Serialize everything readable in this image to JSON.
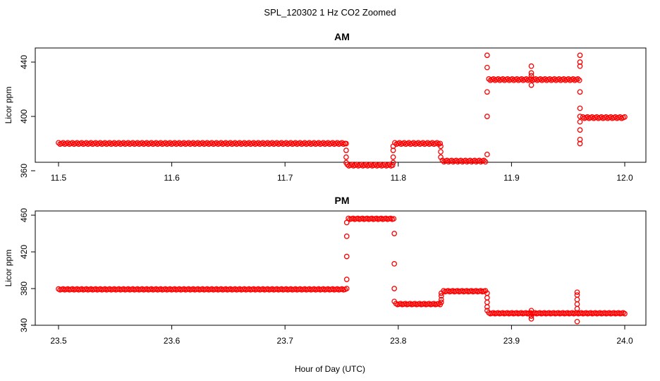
{
  "figure": {
    "title": "SPL_120302  1 Hz CO2 Zoomed",
    "xlabel": "Hour of Day (UTC)",
    "point_color": "#ff0000"
  },
  "chart_data": [
    {
      "type": "scatter",
      "title": "AM",
      "xlabel": "",
      "ylabel": "Licor ppm",
      "xlim": [
        11.5,
        12.0
      ],
      "ylim": [
        352,
        470
      ],
      "xticks": [
        "11.5",
        "11.6",
        "11.7",
        "11.8",
        "11.9",
        "12.0"
      ],
      "yticks": [
        "360",
        "400",
        "440"
      ],
      "grid": false,
      "legend": "none",
      "series": [
        {
          "color": "#ff0000",
          "segments": [
            {
              "x": [
                11.5,
                11.753
              ],
              "y": 380
            },
            {
              "x": [
                11.755,
                11.795
              ],
              "y": 364
            },
            {
              "x": [
                11.797,
                11.837
              ],
              "y": 380
            },
            {
              "x": [
                11.839,
                11.877
              ],
              "y": 367
            },
            {
              "x": [
                11.88,
                11.96
              ],
              "y": 427
            },
            {
              "x": [
                11.963,
                12.0
              ],
              "y": 399
            }
          ],
          "transitions": [
            {
              "x": 11.754,
              "y": [
                380,
                375,
                370,
                366
              ]
            },
            {
              "x": 11.7955,
              "y": [
                366,
                370,
                375,
                378
              ]
            },
            {
              "x": 11.8375,
              "y": [
                378,
                374,
                370
              ]
            },
            {
              "x": 11.8785,
              "y": [
                372,
                400,
                418,
                436,
                445
              ]
            },
            {
              "x": 11.9175,
              "y": [
                423,
                430,
                432,
                437
              ]
            },
            {
              "x": 11.9605,
              "y": [
                437,
                440,
                445,
                418,
                406,
                400,
                396,
                390,
                383,
                380
              ]
            }
          ]
        }
      ]
    },
    {
      "type": "scatter",
      "title": "PM",
      "xlabel": "Hour of Day (UTC)",
      "ylabel": "Licor ppm",
      "xlim": [
        23.5,
        24.0
      ],
      "ylim": [
        340,
        462
      ],
      "xticks": [
        "23.5",
        "23.6",
        "23.7",
        "23.8",
        "23.9",
        "24.0"
      ],
      "yticks": [
        "340",
        "380",
        "420",
        "460"
      ],
      "grid": false,
      "legend": "none",
      "series": [
        {
          "color": "#ff0000",
          "segments": [
            {
              "x": [
                23.5,
                23.753
              ],
              "y": 379
            },
            {
              "x": [
                23.756,
                23.796
              ],
              "y": 456
            },
            {
              "x": [
                23.798,
                23.837
              ],
              "y": 363
            },
            {
              "x": [
                23.84,
                23.877
              ],
              "y": 377
            },
            {
              "x": [
                23.88,
                24.0
              ],
              "y": 353
            }
          ],
          "transitions": [
            {
              "x": 23.7545,
              "y": [
                380,
                390,
                415,
                437,
                452
              ]
            },
            {
              "x": 23.7965,
              "y": [
                440,
                407,
                380,
                366
              ]
            },
            {
              "x": 23.838,
              "y": [
                365,
                368,
                372,
                375
              ]
            },
            {
              "x": 23.8785,
              "y": [
                375,
                370,
                365,
                360,
                356
              ]
            },
            {
              "x": 23.9175,
              "y": [
                356,
                350,
                347
              ]
            },
            {
              "x": 23.958,
              "y": [
                376,
                373,
                368,
                363,
                358,
                344
              ]
            }
          ]
        }
      ]
    }
  ]
}
